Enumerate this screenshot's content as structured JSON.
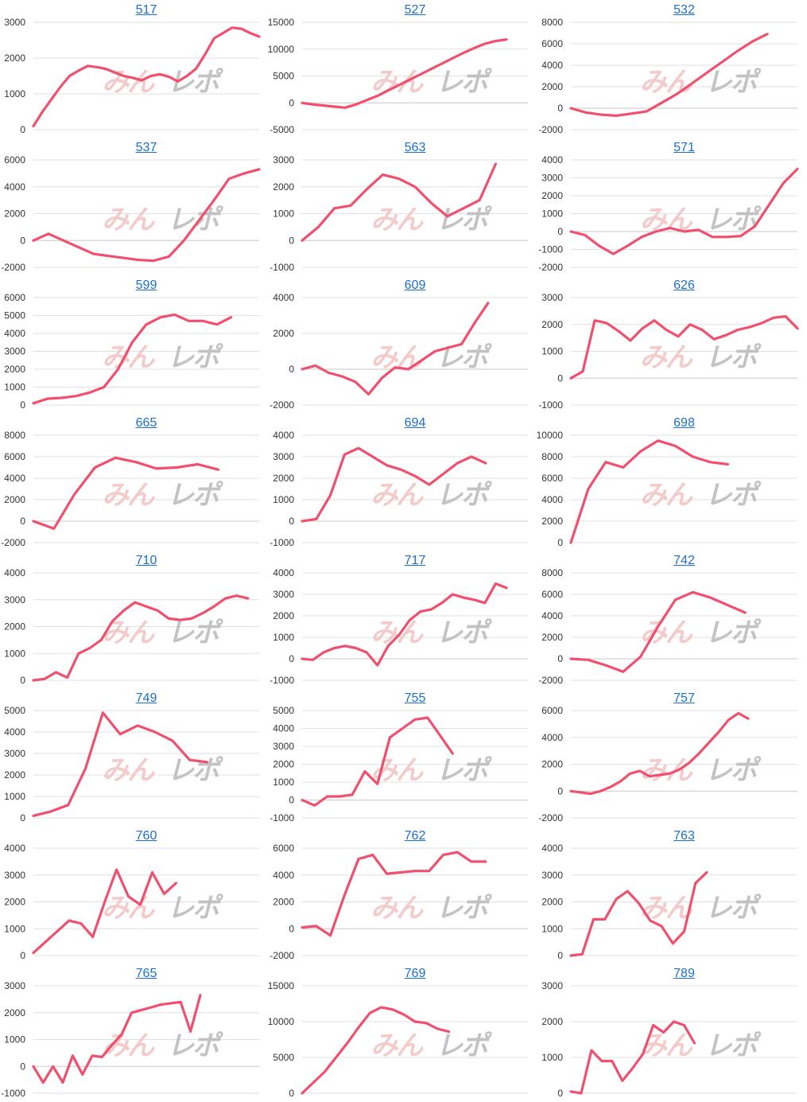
{
  "colors": {
    "line": "#f0506e",
    "title_link": "#1a6fd1",
    "grid": "#e0e0e0",
    "axis_text": "#333333",
    "watermark_pink": "#f2c2c2",
    "watermark_gray": "#bdbdbd"
  },
  "watermark": {
    "part1": "みんレポ"
  },
  "chart_data": [
    {
      "type": "line",
      "title": "517",
      "ylim": [
        0,
        3000
      ],
      "yticks": [
        0,
        1000,
        2000,
        3000
      ],
      "x": [
        0,
        1,
        2,
        3,
        4,
        5,
        6,
        7,
        8,
        9,
        10,
        11,
        12,
        13,
        14,
        15,
        16,
        17,
        18,
        19,
        20,
        21,
        22,
        23,
        24,
        25
      ],
      "values": [
        100,
        500,
        850,
        1200,
        1500,
        1650,
        1780,
        1750,
        1700,
        1600,
        1500,
        1450,
        1380,
        1500,
        1550,
        1480,
        1350,
        1500,
        1700,
        2100,
        2550,
        2700,
        2850,
        2820,
        2700,
        2600
      ]
    },
    {
      "type": "line",
      "title": "527",
      "ylim": [
        -5000,
        15000
      ],
      "yticks": [
        -5000,
        0,
        5000,
        10000,
        15000
      ],
      "x": [
        0,
        1,
        2,
        3,
        4,
        5,
        6,
        7,
        8,
        9,
        10,
        11,
        12,
        13,
        14,
        15,
        16,
        17,
        18,
        19,
        20,
        21
      ],
      "values": [
        0,
        -300,
        -500,
        -700,
        -900,
        -300,
        500,
        1300,
        2300,
        3300,
        4300,
        5300,
        6300,
        7300,
        8300,
        9300,
        10200,
        11000,
        11500,
        11800,
        null,
        null
      ]
    },
    {
      "type": "line",
      "title": "532",
      "ylim": [
        -2000,
        8000
      ],
      "yticks": [
        -2000,
        0,
        2000,
        4000,
        6000,
        8000
      ],
      "x": [
        0,
        1,
        2,
        3,
        4,
        5,
        6,
        7,
        8,
        9,
        10,
        11,
        12,
        13,
        14,
        15
      ],
      "values": [
        0,
        -400,
        -600,
        -700,
        -500,
        -300,
        500,
        1300,
        2300,
        3300,
        4300,
        5300,
        6200,
        6900,
        null,
        null
      ]
    },
    {
      "type": "line",
      "title": "537",
      "ylim": [
        -2000,
        6000
      ],
      "yticks": [
        -2000,
        0,
        2000,
        4000,
        6000
      ],
      "x": [
        0,
        1,
        2,
        3,
        4,
        5,
        6,
        7,
        8,
        9,
        10,
        11,
        12,
        13,
        14,
        15
      ],
      "values": [
        0,
        500,
        0,
        -500,
        -1000,
        -1150,
        -1300,
        -1450,
        -1500,
        -1200,
        0,
        1500,
        3000,
        4600,
        5000,
        5300
      ]
    },
    {
      "type": "line",
      "title": "563",
      "ylim": [
        -1000,
        3000
      ],
      "yticks": [
        -1000,
        0,
        1000,
        2000,
        3000
      ],
      "x": [
        0,
        1,
        2,
        3,
        4,
        5,
        6,
        7,
        8,
        9,
        10,
        11,
        12,
        13,
        14
      ],
      "values": [
        0,
        500,
        1200,
        1300,
        1900,
        2450,
        2300,
        2000,
        1400,
        900,
        1200,
        1500,
        2850,
        null,
        null
      ]
    },
    {
      "type": "line",
      "title": "571",
      "ylim": [
        -2000,
        4000
      ],
      "yticks": [
        -2000,
        -1000,
        0,
        1000,
        2000,
        3000,
        4000
      ],
      "x": [
        0,
        1,
        2,
        3,
        4,
        5,
        6,
        7,
        8,
        9,
        10,
        11,
        12,
        13,
        14,
        15,
        16
      ],
      "values": [
        0,
        -200,
        -800,
        -1250,
        -800,
        -300,
        0,
        200,
        0,
        100,
        -300,
        -300,
        -250,
        300,
        1500,
        2700,
        3500
      ]
    },
    {
      "type": "line",
      "title": "599",
      "ylim": [
        0,
        6000
      ],
      "yticks": [
        0,
        1000,
        2000,
        3000,
        4000,
        5000,
        6000
      ],
      "x": [
        0,
        1,
        2,
        3,
        4,
        5,
        6,
        7,
        8,
        9,
        10,
        11,
        12,
        13,
        14,
        15,
        16
      ],
      "values": [
        100,
        350,
        400,
        500,
        700,
        1000,
        2000,
        3500,
        4500,
        4900,
        5050,
        4700,
        4700,
        4500,
        4900,
        null,
        null
      ]
    },
    {
      "type": "line",
      "title": "609",
      "ylim": [
        -2000,
        4000
      ],
      "yticks": [
        -2000,
        0,
        2000,
        4000
      ],
      "x": [
        0,
        1,
        2,
        3,
        4,
        5,
        6,
        7,
        8,
        9,
        10,
        11,
        12,
        13,
        14,
        15,
        16,
        17
      ],
      "values": [
        0,
        200,
        -200,
        -400,
        -700,
        -1400,
        -500,
        100,
        0,
        500,
        1000,
        1200,
        1400,
        2600,
        3700,
        null,
        null,
        null
      ]
    },
    {
      "type": "line",
      "title": "626",
      "ylim": [
        -1000,
        3000
      ],
      "yticks": [
        -1000,
        0,
        1000,
        2000,
        3000
      ],
      "x": [
        0,
        1,
        2,
        3,
        4,
        5,
        6,
        7,
        8,
        9,
        10,
        11,
        12,
        13,
        14,
        15,
        16,
        17,
        18,
        19
      ],
      "values": [
        0,
        250,
        2150,
        2050,
        1750,
        1400,
        1850,
        2150,
        1800,
        1550,
        2000,
        1800,
        1450,
        1600,
        1800,
        1900,
        2050,
        2250,
        2300,
        1850
      ]
    },
    {
      "type": "line",
      "title": "665",
      "ylim": [
        -2000,
        8000
      ],
      "yticks": [
        -2000,
        0,
        2000,
        4000,
        6000,
        8000
      ],
      "x": [
        0,
        1,
        2,
        3,
        4,
        5,
        6,
        7,
        8,
        9,
        10,
        11
      ],
      "values": [
        0,
        -700,
        2500,
        5000,
        5900,
        5500,
        4900,
        5000,
        5300,
        4800,
        null,
        null
      ]
    },
    {
      "type": "line",
      "title": "694",
      "ylim": [
        -1000,
        4000
      ],
      "yticks": [
        -1000,
        0,
        1000,
        2000,
        3000,
        4000
      ],
      "x": [
        0,
        1,
        2,
        3,
        4,
        5,
        6,
        7,
        8,
        9,
        10,
        11,
        12,
        13,
        14,
        15,
        16
      ],
      "values": [
        0,
        100,
        1200,
        3100,
        3400,
        3000,
        2600,
        2400,
        2100,
        1700,
        2200,
        2700,
        3000,
        2700,
        null,
        null,
        null
      ]
    },
    {
      "type": "line",
      "title": "698",
      "ylim": [
        0,
        10000
      ],
      "yticks": [
        0,
        2000,
        4000,
        6000,
        8000,
        10000
      ],
      "x": [
        0,
        1,
        2,
        3,
        4,
        5,
        6,
        7,
        8,
        9,
        10,
        11,
        12,
        13
      ],
      "values": [
        0,
        5000,
        7500,
        7000,
        8500,
        9500,
        9000,
        8000,
        7500,
        7300,
        null,
        null,
        null,
        null
      ]
    },
    {
      "type": "line",
      "title": "710",
      "ylim": [
        0,
        4000
      ],
      "yticks": [
        0,
        1000,
        2000,
        3000,
        4000
      ],
      "x": [
        0,
        1,
        2,
        3,
        4,
        5,
        6,
        7,
        8,
        9,
        10,
        11,
        12,
        13,
        14,
        15,
        16,
        17,
        18,
        19,
        20
      ],
      "values": [
        0,
        50,
        300,
        100,
        1000,
        1200,
        1500,
        2200,
        2600,
        2900,
        2750,
        2600,
        2300,
        2250,
        2300,
        2500,
        2750,
        3050,
        3150,
        3050,
        null
      ]
    },
    {
      "type": "line",
      "title": "717",
      "ylim": [
        -1000,
        4000
      ],
      "yticks": [
        -1000,
        0,
        1000,
        2000,
        3000,
        4000
      ],
      "x": [
        0,
        1,
        2,
        3,
        4,
        5,
        6,
        7,
        8,
        9,
        10,
        11,
        12,
        13,
        14,
        15,
        16,
        17,
        18,
        19,
        20,
        21
      ],
      "values": [
        0,
        -50,
        300,
        500,
        600,
        500,
        300,
        -300,
        600,
        1100,
        1800,
        2200,
        2300,
        2600,
        3000,
        2850,
        2750,
        2600,
        3500,
        3300,
        null,
        null
      ]
    },
    {
      "type": "line",
      "title": "742",
      "ylim": [
        -2000,
        8000
      ],
      "yticks": [
        -2000,
        0,
        2000,
        4000,
        6000,
        8000
      ],
      "x": [
        0,
        1,
        2,
        3,
        4,
        5,
        6,
        7,
        8,
        9,
        10,
        11,
        12,
        13
      ],
      "values": [
        0,
        -100,
        -600,
        -1200,
        200,
        3000,
        5500,
        6200,
        5700,
        5000,
        4300,
        null,
        null,
        null
      ]
    },
    {
      "type": "line",
      "title": "749",
      "ylim": [
        0,
        5000
      ],
      "yticks": [
        0,
        1000,
        2000,
        3000,
        4000,
        5000
      ],
      "x": [
        0,
        1,
        2,
        3,
        4,
        5,
        6,
        7,
        8,
        9,
        10,
        11,
        12,
        13
      ],
      "values": [
        100,
        300,
        600,
        2300,
        4900,
        3900,
        4300,
        4000,
        3600,
        2700,
        2600,
        null,
        null,
        null
      ]
    },
    {
      "type": "line",
      "title": "755",
      "ylim": [
        -1000,
        5000
      ],
      "yticks": [
        -1000,
        0,
        1000,
        2000,
        3000,
        4000,
        5000
      ],
      "x": [
        0,
        1,
        2,
        3,
        4,
        5,
        6,
        7,
        8,
        9,
        10,
        11,
        12,
        13,
        14,
        15,
        16,
        17,
        18
      ],
      "values": [
        0,
        -300,
        200,
        200,
        300,
        1600,
        900,
        3500,
        4000,
        4500,
        4600,
        3600,
        2600,
        null,
        null,
        null,
        null,
        null,
        null
      ]
    },
    {
      "type": "line",
      "title": "757",
      "ylim": [
        -2000,
        6000
      ],
      "yticks": [
        -2000,
        0,
        2000,
        4000,
        6000
      ],
      "x": [
        0,
        1,
        2,
        3,
        4,
        5,
        6,
        7,
        8,
        9,
        10,
        11,
        12,
        13,
        14,
        15,
        16,
        17,
        18,
        19,
        20,
        21,
        22,
        23
      ],
      "values": [
        0,
        -100,
        -200,
        0,
        300,
        700,
        1300,
        1500,
        1100,
        1200,
        1300,
        1600,
        2100,
        2800,
        3600,
        4400,
        5300,
        5800,
        5400,
        null,
        null,
        null,
        null,
        null
      ]
    },
    {
      "type": "line",
      "title": "760",
      "ylim": [
        0,
        4000
      ],
      "yticks": [
        0,
        1000,
        2000,
        3000,
        4000
      ],
      "x": [
        0,
        1,
        2,
        3,
        4,
        5,
        6,
        7,
        8,
        9,
        10,
        11,
        12,
        13,
        14,
        15,
        16,
        17,
        18,
        19
      ],
      "values": [
        100,
        500,
        900,
        1300,
        1200,
        700,
        2000,
        3200,
        2200,
        1900,
        3100,
        2300,
        2700,
        null,
        null,
        null,
        null,
        null,
        null,
        null
      ]
    },
    {
      "type": "line",
      "title": "762",
      "ylim": [
        -2000,
        6000
      ],
      "yticks": [
        -2000,
        0,
        2000,
        4000,
        6000
      ],
      "x": [
        0,
        1,
        2,
        3,
        4,
        5,
        6,
        7,
        8,
        9,
        10,
        11,
        12,
        13,
        14,
        15,
        16
      ],
      "values": [
        100,
        200,
        -500,
        2500,
        5200,
        5500,
        4100,
        4200,
        4300,
        4300,
        5500,
        5700,
        5000,
        5000,
        null,
        null,
        null
      ]
    },
    {
      "type": "line",
      "title": "763",
      "ylim": [
        0,
        4000
      ],
      "yticks": [
        0,
        1000,
        2000,
        3000,
        4000
      ],
      "x": [
        0,
        1,
        2,
        3,
        4,
        5,
        6,
        7,
        8,
        9,
        10,
        11,
        12,
        13,
        14,
        15,
        16,
        17,
        18,
        19,
        20
      ],
      "values": [
        0,
        50,
        1350,
        1350,
        2100,
        2400,
        1950,
        1300,
        1100,
        450,
        900,
        2700,
        3100,
        null,
        null,
        null,
        null,
        null,
        null,
        null,
        null
      ]
    },
    {
      "type": "line",
      "title": "765",
      "ylim": [
        -1000,
        3000
      ],
      "yticks": [
        -1000,
        0,
        1000,
        2000,
        3000
      ],
      "x": [
        0,
        1,
        2,
        3,
        4,
        5,
        6,
        7,
        8,
        9,
        10,
        11,
        12,
        13,
        14,
        15,
        16,
        17,
        18,
        19,
        20,
        21,
        22,
        23
      ],
      "values": [
        0,
        -600,
        0,
        -600,
        400,
        -300,
        400,
        350,
        800,
        1200,
        2000,
        2100,
        2200,
        2300,
        2350,
        2400,
        1300,
        2650,
        null,
        null,
        null,
        null,
        null,
        null
      ]
    },
    {
      "type": "line",
      "title": "769",
      "ylim": [
        0,
        15000
      ],
      "yticks": [
        0,
        5000,
        10000,
        15000
      ],
      "x": [
        0,
        1,
        2,
        3,
        4,
        5,
        6,
        7,
        8,
        9,
        10,
        11,
        12,
        13,
        14,
        15,
        16,
        17,
        18,
        19,
        20
      ],
      "values": [
        0,
        1500,
        3000,
        5000,
        7000,
        9200,
        11200,
        12000,
        11700,
        11000,
        10000,
        9800,
        9000,
        8600,
        null,
        null,
        null,
        null,
        null,
        null,
        null
      ]
    },
    {
      "type": "line",
      "title": "789",
      "ylim": [
        0,
        3000
      ],
      "yticks": [
        0,
        1000,
        2000,
        3000
      ],
      "x": [
        0,
        1,
        2,
        3,
        4,
        5,
        6,
        7,
        8,
        9,
        10,
        11,
        12,
        13,
        14,
        15,
        16,
        17,
        18,
        19,
        20,
        21,
        22
      ],
      "values": [
        50,
        0,
        1200,
        900,
        900,
        350,
        700,
        1100,
        1900,
        1700,
        2000,
        1900,
        1400,
        null,
        null,
        null,
        null,
        null,
        null,
        null,
        null,
        null,
        null
      ]
    }
  ]
}
